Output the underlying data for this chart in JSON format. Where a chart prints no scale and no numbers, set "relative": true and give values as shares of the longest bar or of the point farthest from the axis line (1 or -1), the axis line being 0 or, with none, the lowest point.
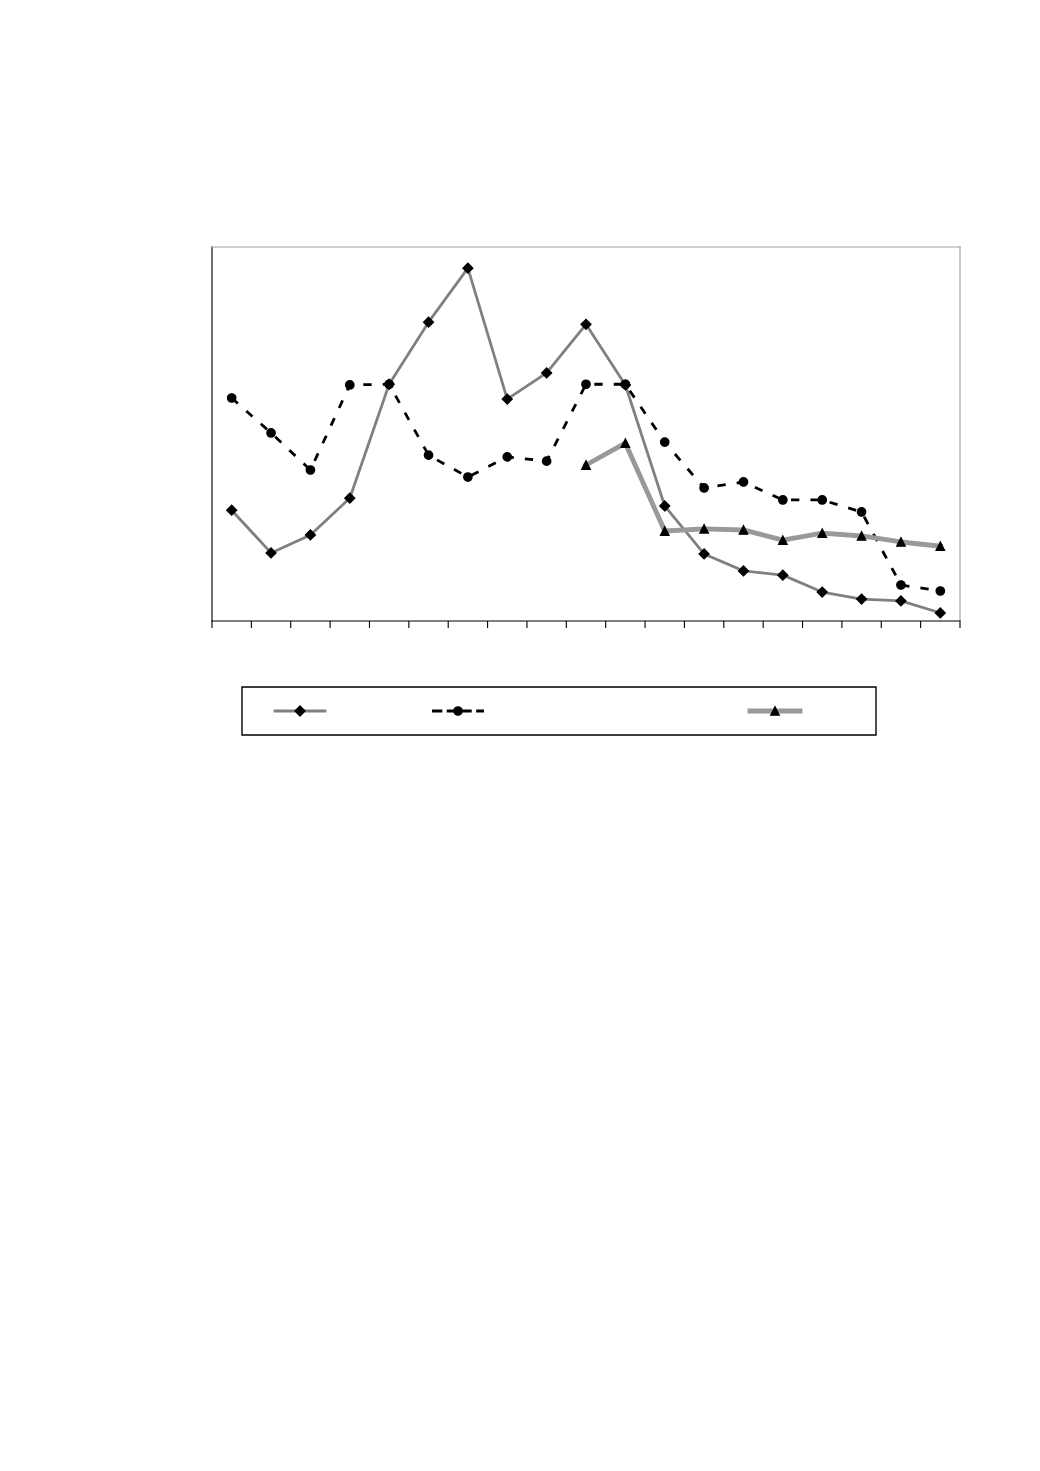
{
  "chart_data": {
    "type": "line",
    "relative": true,
    "grid": false,
    "categories": [
      null,
      null,
      null,
      null,
      null,
      null,
      null,
      null,
      null,
      null,
      null,
      null,
      null,
      null,
      null,
      null,
      null,
      null,
      null
    ],
    "series": [
      {
        "color": "#808080",
        "marker": "diamond",
        "line_style": "solid",
        "values": [
          0.314,
          0.193,
          0.244,
          0.348,
          0.671,
          0.847,
          1,
          0.629,
          0.703,
          0.841,
          0.669,
          0.326,
          0.19,
          0.142,
          0.13,
          0.082,
          0.062,
          0.057,
          0.023
        ]
      },
      {
        "color": "#000000",
        "marker": "circle",
        "line_style": "dashed",
        "values": [
          0.632,
          0.533,
          0.428,
          0.669,
          0.671,
          0.47,
          0.408,
          0.465,
          0.453,
          0.671,
          0.671,
          0.507,
          0.377,
          0.394,
          0.343,
          0.343,
          0.309,
          0.102,
          0.085
        ]
      },
      {
        "color": "#999999",
        "marker": "triangle",
        "line_style": "solid",
        "values": [
          null,
          null,
          null,
          null,
          null,
          null,
          null,
          null,
          null,
          0.442,
          0.504,
          0.255,
          0.261,
          0.258,
          0.229,
          0.249,
          0.241,
          0.224,
          0.212
        ]
      }
    ]
  }
}
